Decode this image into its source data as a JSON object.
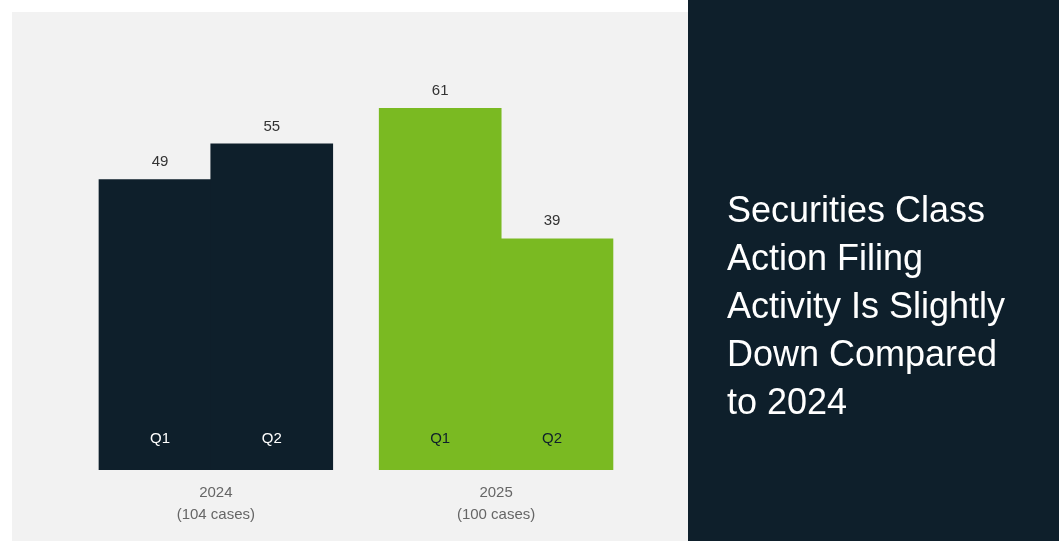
{
  "chart_data": {
    "type": "bar",
    "title": "Securities Class Action Filing Activity Is Slightly Down Compared to 2024",
    "categories": [
      "Q1",
      "Q2",
      "Q1",
      "Q2"
    ],
    "values": [
      49,
      55,
      61,
      39
    ],
    "colors": [
      "#0e1f2b",
      "#0e1f2b",
      "#7aba22",
      "#7aba22"
    ],
    "data_labels": true,
    "annotations": [
      "2024\n(104 cases)",
      "2025\n(100 cases)"
    ]
  }
}
